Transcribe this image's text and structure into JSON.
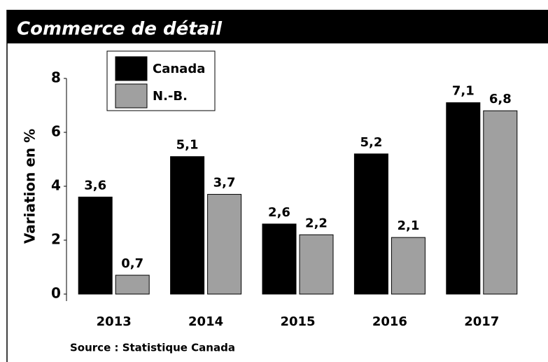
{
  "chart_data": {
    "type": "bar",
    "title": "Commerce de détail",
    "y_label": "Variation en %",
    "source": "Source : Statistique Canada",
    "categories": [
      "2013",
      "2014",
      "2015",
      "2016",
      "2017"
    ],
    "series": [
      {
        "name": "Canada",
        "color": "#000000",
        "values": [
          3.6,
          5.1,
          2.6,
          5.2,
          7.1
        ],
        "value_labels": [
          "3,6",
          "5,1",
          "2,6",
          "5,2",
          "7,1"
        ]
      },
      {
        "name": "N.-B.",
        "color": "#a0a0a0",
        "values": [
          0.7,
          3.7,
          2.2,
          2.1,
          6.8
        ],
        "value_labels": [
          "0,7",
          "3,7",
          "2,2",
          "2,1",
          "6,8"
        ]
      }
    ],
    "ylim": [
      0,
      8
    ],
    "yticks": [
      0,
      2,
      4,
      6,
      8
    ],
    "legend": "upper left"
  }
}
